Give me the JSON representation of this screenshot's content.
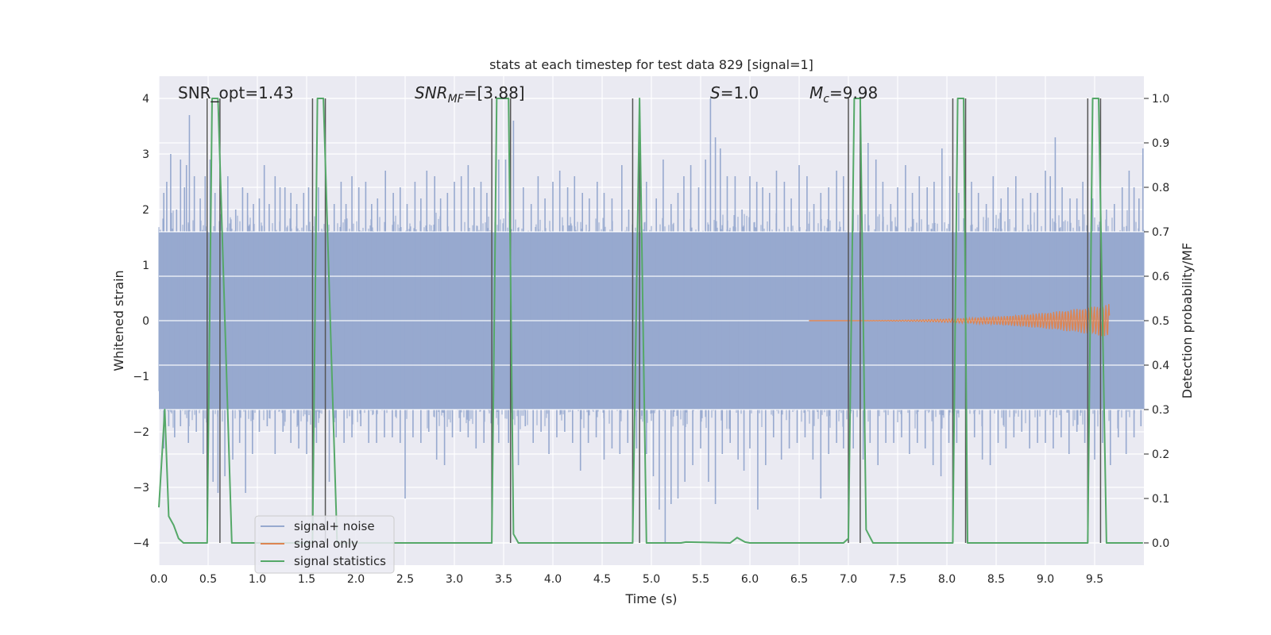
{
  "chart_data": {
    "type": "line",
    "title": "stats at each timestep for test data 829 [signal=1]",
    "xlabel": "Time (s)",
    "ylabel_left": "Whitened strain",
    "ylabel_right": "Detection probability/MF",
    "xlim": [
      0.0,
      10.0
    ],
    "ylim_left": [
      -4.4,
      4.4
    ],
    "ylim_right": [
      -0.05,
      1.05
    ],
    "xticks": [
      0.0,
      0.5,
      1.0,
      1.5,
      2.0,
      2.5,
      3.0,
      3.5,
      4.0,
      4.5,
      5.0,
      5.5,
      6.0,
      6.5,
      7.0,
      7.5,
      8.0,
      8.5,
      9.0,
      9.5
    ],
    "xtick_labels": [
      "0.0",
      "0.5",
      "1.0",
      "1.5",
      "2.0",
      "2.5",
      "3.0",
      "3.5",
      "4.0",
      "4.5",
      "5.0",
      "5.5",
      "6.0",
      "6.5",
      "7.0",
      "7.5",
      "8.0",
      "8.5",
      "9.0",
      "9.5"
    ],
    "yticks_left": [
      -4,
      -3,
      -2,
      -1,
      0,
      1,
      2,
      3,
      4
    ],
    "ytick_labels_left": [
      "−4",
      "−3",
      "−2",
      "−1",
      "0",
      "1",
      "2",
      "3",
      "4"
    ],
    "yticks_right": [
      0.0,
      0.1,
      0.2,
      0.3,
      0.4,
      0.5,
      0.6,
      0.7,
      0.8,
      0.9,
      1.0
    ],
    "ytick_labels_right": [
      "0.0",
      "0.1",
      "0.2",
      "0.3",
      "0.4",
      "0.5",
      "0.6",
      "0.7",
      "0.8",
      "0.9",
      "1.0"
    ],
    "grid": true,
    "legend_position": "lower-left",
    "annotations": [
      {
        "label": "SNR_opt=1.43"
      },
      {
        "label": "SNR_MF=[3.88]",
        "italic": "SNR",
        "sub": "MF",
        "rest": "=[3.88]"
      },
      {
        "label": "S=1.0",
        "italic": "S",
        "rest": "=1.0"
      },
      {
        "label": "M_c=9.98",
        "italic": "M",
        "sub": "c",
        "rest": "=9.98"
      }
    ],
    "vlines": [
      0.49,
      0.62,
      1.56,
      1.69,
      3.38,
      3.57,
      4.81,
      4.88,
      7.0,
      7.12,
      8.06,
      8.19,
      9.43,
      9.56
    ],
    "series": [
      {
        "name": "signal+ noise",
        "color": "#97a9cf",
        "axis": "left",
        "noise_band": [
          -1.6,
          1.6
        ],
        "peak_spikes": [
          [
            0.05,
            2.3
          ],
          [
            0.08,
            2.5
          ],
          [
            0.12,
            3.0
          ],
          [
            0.18,
            2.0
          ],
          [
            0.22,
            2.9
          ],
          [
            0.26,
            2.4
          ],
          [
            0.28,
            2.8
          ],
          [
            0.31,
            3.7
          ],
          [
            0.36,
            2.6
          ],
          [
            0.42,
            2.2
          ],
          [
            0.47,
            2.6
          ],
          [
            0.52,
            2.9
          ],
          [
            0.57,
            2.3
          ],
          [
            0.7,
            2.6
          ],
          [
            0.78,
            2.0
          ],
          [
            0.85,
            2.4
          ],
          [
            0.9,
            2.3
          ],
          [
            0.96,
            2.1
          ],
          [
            1.02,
            2.2
          ],
          [
            1.07,
            2.8
          ],
          [
            1.12,
            2.1
          ],
          [
            1.18,
            2.6
          ],
          [
            1.23,
            2.4
          ],
          [
            1.28,
            2.4
          ],
          [
            1.34,
            2.3
          ],
          [
            1.4,
            2.1
          ],
          [
            1.47,
            2.3
          ],
          [
            1.52,
            2.4
          ],
          [
            1.62,
            2.4
          ],
          [
            1.78,
            2.1
          ],
          [
            1.85,
            2.5
          ],
          [
            1.9,
            2.1
          ],
          [
            1.96,
            2.6
          ],
          [
            2.03,
            2.4
          ],
          [
            2.1,
            2.5
          ],
          [
            2.16,
            2.1
          ],
          [
            2.22,
            2.2
          ],
          [
            2.3,
            2.7
          ],
          [
            2.38,
            2.3
          ],
          [
            2.45,
            2.4
          ],
          [
            2.52,
            2.1
          ],
          [
            2.6,
            2.5
          ],
          [
            2.66,
            2.2
          ],
          [
            2.72,
            2.7
          ],
          [
            2.8,
            2.6
          ],
          [
            2.86,
            2.2
          ],
          [
            2.93,
            2.3
          ],
          [
            3.0,
            2.5
          ],
          [
            3.07,
            2.6
          ],
          [
            3.14,
            2.8
          ],
          [
            3.2,
            2.4
          ],
          [
            3.27,
            2.5
          ],
          [
            3.33,
            2.3
          ],
          [
            3.45,
            2.9
          ],
          [
            3.52,
            2.9
          ],
          [
            3.6,
            3.6
          ],
          [
            3.7,
            2.4
          ],
          [
            3.78,
            2.1
          ],
          [
            3.85,
            2.6
          ],
          [
            3.92,
            2.2
          ],
          [
            4.0,
            2.5
          ],
          [
            4.07,
            2.7
          ],
          [
            4.15,
            2.4
          ],
          [
            4.22,
            2.6
          ],
          [
            4.3,
            2.3
          ],
          [
            4.37,
            2.2
          ],
          [
            4.45,
            2.5
          ],
          [
            4.52,
            2.3
          ],
          [
            4.6,
            2.2
          ],
          [
            4.7,
            2.8
          ],
          [
            4.77,
            2.0
          ],
          [
            4.95,
            2.5
          ],
          [
            5.05,
            2.2
          ],
          [
            5.12,
            2.9
          ],
          [
            5.2,
            2.1
          ],
          [
            5.27,
            2.3
          ],
          [
            5.33,
            2.6
          ],
          [
            5.4,
            2.8
          ],
          [
            5.48,
            2.4
          ],
          [
            5.55,
            2.9
          ],
          [
            5.6,
            4.0
          ],
          [
            5.65,
            3.3
          ],
          [
            5.7,
            3.1
          ],
          [
            5.77,
            2.6
          ],
          [
            5.85,
            2.6
          ],
          [
            5.92,
            2.0
          ],
          [
            6.0,
            2.6
          ],
          [
            6.07,
            2.5
          ],
          [
            6.13,
            2.4
          ],
          [
            6.2,
            2.3
          ],
          [
            6.27,
            2.7
          ],
          [
            6.35,
            2.5
          ],
          [
            6.42,
            2.2
          ],
          [
            6.5,
            2.8
          ],
          [
            6.58,
            2.6
          ],
          [
            6.65,
            2.1
          ],
          [
            6.72,
            2.3
          ],
          [
            6.8,
            2.4
          ],
          [
            6.88,
            2.7
          ],
          [
            6.95,
            2.6
          ],
          [
            7.05,
            2.0
          ],
          [
            7.2,
            3.2
          ],
          [
            7.28,
            2.9
          ],
          [
            7.35,
            2.5
          ],
          [
            7.43,
            2.1
          ],
          [
            7.5,
            2.4
          ],
          [
            7.58,
            2.8
          ],
          [
            7.65,
            2.3
          ],
          [
            7.72,
            2.6
          ],
          [
            7.8,
            2.4
          ],
          [
            7.87,
            2.5
          ],
          [
            7.95,
            3.1
          ],
          [
            8.03,
            2.6
          ],
          [
            8.12,
            2.3
          ],
          [
            8.25,
            2.5
          ],
          [
            8.32,
            2.3
          ],
          [
            8.4,
            2.1
          ],
          [
            8.47,
            2.6
          ],
          [
            8.55,
            2.2
          ],
          [
            8.62,
            2.4
          ],
          [
            8.7,
            2.6
          ],
          [
            8.77,
            2.2
          ],
          [
            8.85,
            2.3
          ],
          [
            8.92,
            2.3
          ],
          [
            9.0,
            2.7
          ],
          [
            9.05,
            2.6
          ],
          [
            9.1,
            3.3
          ],
          [
            9.17,
            2.4
          ],
          [
            9.25,
            2.2
          ],
          [
            9.32,
            2.2
          ],
          [
            9.38,
            2.5
          ],
          [
            9.48,
            2.2
          ],
          [
            9.62,
            2.0
          ],
          [
            9.7,
            2.1
          ],
          [
            9.78,
            2.4
          ],
          [
            9.85,
            2.7
          ],
          [
            9.9,
            2.4
          ],
          [
            9.95,
            2.2
          ],
          [
            9.99,
            3.1
          ]
        ],
        "trough_spikes": [
          [
            0.05,
            -2.3
          ],
          [
            0.1,
            -1.9
          ],
          [
            0.16,
            -2.1
          ],
          [
            0.22,
            -1.9
          ],
          [
            0.3,
            -2.2
          ],
          [
            0.38,
            -2.0
          ],
          [
            0.45,
            -2.4
          ],
          [
            0.55,
            -2.9
          ],
          [
            0.6,
            -3.1
          ],
          [
            0.67,
            -2.8
          ],
          [
            0.75,
            -2.5
          ],
          [
            0.82,
            -2.2
          ],
          [
            0.88,
            -3.1
          ],
          [
            0.95,
            -2.4
          ],
          [
            1.02,
            -2.0
          ],
          [
            1.1,
            -1.9
          ],
          [
            1.18,
            -2.4
          ],
          [
            1.26,
            -2.0
          ],
          [
            1.34,
            -2.2
          ],
          [
            1.42,
            -2.3
          ],
          [
            1.5,
            -2.4
          ],
          [
            1.6,
            -2.2
          ],
          [
            1.73,
            -2.9
          ],
          [
            1.8,
            -2.1
          ],
          [
            1.88,
            -2.2
          ],
          [
            1.96,
            -2.1
          ],
          [
            2.05,
            -1.9
          ],
          [
            2.13,
            -2.2
          ],
          [
            2.21,
            -2.2
          ],
          [
            2.29,
            -2.1
          ],
          [
            2.37,
            -2.1
          ],
          [
            2.45,
            -2.2
          ],
          [
            2.5,
            -3.2
          ],
          [
            2.58,
            -2.1
          ],
          [
            2.66,
            -2.2
          ],
          [
            2.74,
            -2.0
          ],
          [
            2.82,
            -2.5
          ],
          [
            2.9,
            -2.6
          ],
          [
            2.98,
            -2.1
          ],
          [
            3.06,
            -2.0
          ],
          [
            3.14,
            -2.1
          ],
          [
            3.22,
            -2.3
          ],
          [
            3.3,
            -2.2
          ],
          [
            3.45,
            -2.2
          ],
          [
            3.55,
            -2.2
          ],
          [
            3.65,
            -2.6
          ],
          [
            3.72,
            -1.9
          ],
          [
            3.8,
            -2.2
          ],
          [
            3.88,
            -2.0
          ],
          [
            3.96,
            -2.4
          ],
          [
            4.04,
            -2.1
          ],
          [
            4.12,
            -2.0
          ],
          [
            4.2,
            -2.2
          ],
          [
            4.28,
            -2.7
          ],
          [
            4.36,
            -2.2
          ],
          [
            4.44,
            -2.1
          ],
          [
            4.52,
            -2.5
          ],
          [
            4.6,
            -2.3
          ],
          [
            4.68,
            -2.4
          ],
          [
            4.76,
            -2.2
          ],
          [
            4.85,
            -2.3
          ],
          [
            4.95,
            -2.4
          ],
          [
            5.02,
            -2.8
          ],
          [
            5.08,
            -3.4
          ],
          [
            5.14,
            -4.0
          ],
          [
            5.2,
            -3.3
          ],
          [
            5.27,
            -3.2
          ],
          [
            5.34,
            -2.9
          ],
          [
            5.42,
            -2.6
          ],
          [
            5.5,
            -2.3
          ],
          [
            5.58,
            -2.9
          ],
          [
            5.65,
            -3.3
          ],
          [
            5.72,
            -2.4
          ],
          [
            5.8,
            -2.2
          ],
          [
            5.88,
            -2.5
          ],
          [
            5.94,
            -2.7
          ],
          [
            6.0,
            -2.3
          ],
          [
            6.08,
            -3.4
          ],
          [
            6.16,
            -2.6
          ],
          [
            6.24,
            -2.1
          ],
          [
            6.32,
            -2.5
          ],
          [
            6.4,
            -2.3
          ],
          [
            6.48,
            -2.2
          ],
          [
            6.56,
            -2.1
          ],
          [
            6.64,
            -2.5
          ],
          [
            6.72,
            -3.2
          ],
          [
            6.8,
            -2.4
          ],
          [
            6.88,
            -2.2
          ],
          [
            6.95,
            -2.3
          ],
          [
            7.05,
            -2.3
          ],
          [
            7.15,
            -2.5
          ],
          [
            7.22,
            -2.2
          ],
          [
            7.3,
            -2.6
          ],
          [
            7.38,
            -2.2
          ],
          [
            7.46,
            -2.2
          ],
          [
            7.54,
            -2.1
          ],
          [
            7.62,
            -2.4
          ],
          [
            7.7,
            -2.2
          ],
          [
            7.78,
            -2.3
          ],
          [
            7.86,
            -2.6
          ],
          [
            7.94,
            -2.8
          ],
          [
            8.02,
            -2.2
          ],
          [
            8.1,
            -2.2
          ],
          [
            8.2,
            -2.3
          ],
          [
            8.28,
            -2.1
          ],
          [
            8.36,
            -2.5
          ],
          [
            8.44,
            -2.6
          ],
          [
            8.52,
            -2.2
          ],
          [
            8.6,
            -2.3
          ],
          [
            8.68,
            -2.1
          ],
          [
            8.76,
            -2.0
          ],
          [
            8.84,
            -2.3
          ],
          [
            8.92,
            -2.2
          ],
          [
            9.0,
            -2.2
          ],
          [
            9.08,
            -2.3
          ],
          [
            9.16,
            -2.1
          ],
          [
            9.24,
            -2.4
          ],
          [
            9.32,
            -2.0
          ],
          [
            9.4,
            -2.2
          ],
          [
            9.5,
            -2.5
          ],
          [
            9.58,
            -2.2
          ],
          [
            9.66,
            -2.6
          ],
          [
            9.74,
            -2.1
          ],
          [
            9.82,
            -2.4
          ],
          [
            9.9,
            -2.1
          ],
          [
            9.97,
            -1.9
          ]
        ]
      },
      {
        "name": "signal only",
        "color": "#dd8452",
        "axis": "left",
        "chirp": {
          "start": 6.6,
          "end": 9.65,
          "max_amplitude": 0.3
        }
      },
      {
        "name": "signal statistics",
        "color": "#55a868",
        "axis": "right",
        "x": [
          0.0,
          0.06,
          0.1,
          0.15,
          0.2,
          0.25,
          0.3,
          0.49,
          0.54,
          0.6,
          0.74,
          1.56,
          1.61,
          1.67,
          1.81,
          3.38,
          3.43,
          3.55,
          3.6,
          3.65,
          4.81,
          4.88,
          4.95,
          5.3,
          5.35,
          5.8,
          5.87,
          5.95,
          6.0,
          6.95,
          7.0,
          7.06,
          7.12,
          7.18,
          7.25,
          8.06,
          8.11,
          8.17,
          8.21,
          9.43,
          9.48,
          9.54,
          9.62,
          9.99
        ],
        "y": [
          0.08,
          0.3,
          0.06,
          0.04,
          0.01,
          0.0,
          0.0,
          0.0,
          1.0,
          1.0,
          0.0,
          0.0,
          1.0,
          1.0,
          0.0,
          0.0,
          1.0,
          1.0,
          0.02,
          0.0,
          0.0,
          1.0,
          0.0,
          0.0,
          0.002,
          0.0,
          0.012,
          0.002,
          0.0,
          0.0,
          0.01,
          1.0,
          1.0,
          0.03,
          0.0,
          0.0,
          1.0,
          1.0,
          0.0,
          0.0,
          1.0,
          1.0,
          0.0,
          0.0
        ]
      }
    ]
  }
}
